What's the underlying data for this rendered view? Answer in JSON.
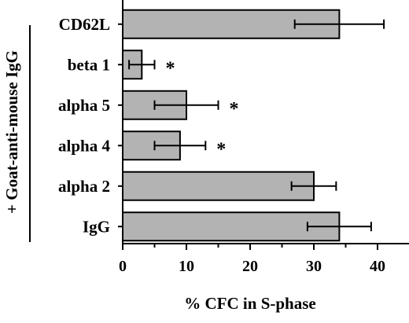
{
  "chart_data": {
    "type": "bar",
    "orientation": "horizontal",
    "categories": [
      "CD62L",
      "beta 1",
      "alpha 5",
      "alpha 4",
      "alpha 2",
      "IgG"
    ],
    "values": [
      34,
      3,
      10,
      9,
      30,
      34
    ],
    "errors": [
      7,
      2,
      5,
      4,
      3.5,
      5
    ],
    "significance": [
      "",
      "*",
      "*",
      "*",
      "",
      ""
    ],
    "xlabel": "% CFC in S-phase",
    "ylabel": "",
    "xlim": [
      0,
      45
    ],
    "xticks": [
      0,
      10,
      20,
      30,
      40
    ],
    "group_label": "+ Goat-anti-mouse IgG",
    "grid": false,
    "bar_color": "#b3b3b3"
  }
}
